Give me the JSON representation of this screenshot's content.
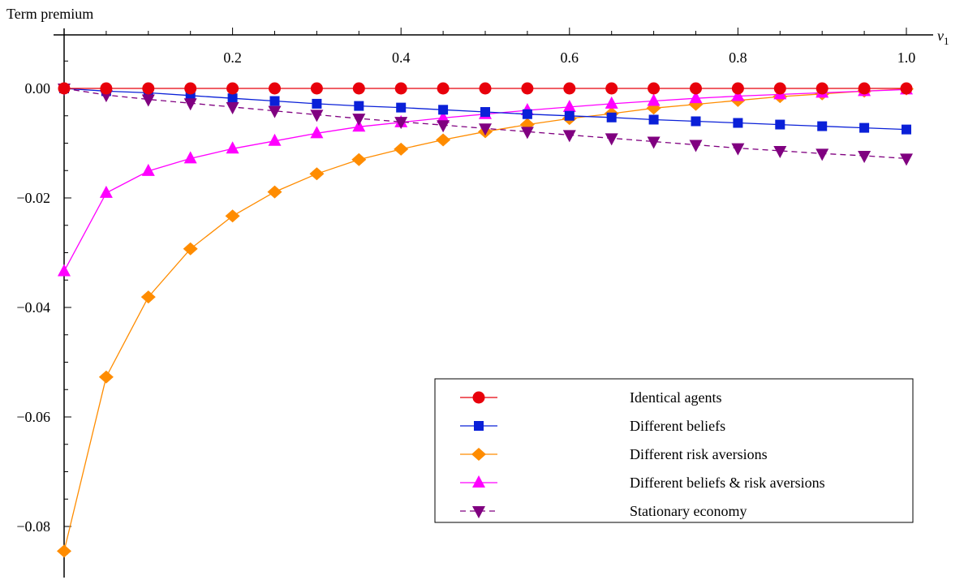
{
  "chart_data": {
    "type": "line",
    "ylabel": "Term premium",
    "xlabel": "ν",
    "xlabel_subscript": "1",
    "xlim": [
      0,
      1
    ],
    "ylim": [
      -0.09,
      0.01
    ],
    "x_ticks": [
      {
        "value": 0.2,
        "label": "0.2"
      },
      {
        "value": 0.4,
        "label": "0.4"
      },
      {
        "value": 0.6,
        "label": "0.6"
      },
      {
        "value": 0.8,
        "label": "0.8"
      },
      {
        "value": 1.0,
        "label": "1.0"
      }
    ],
    "y_ticks": [
      {
        "value": 0.0,
        "label": "0.00"
      },
      {
        "value": -0.02,
        "label": "−0.02"
      },
      {
        "value": -0.04,
        "label": "−0.04"
      },
      {
        "value": -0.06,
        "label": "−0.06"
      },
      {
        "value": -0.08,
        "label": "−0.08"
      }
    ],
    "x": [
      0,
      0.05,
      0.1,
      0.15,
      0.2,
      0.25,
      0.3,
      0.35,
      0.4,
      0.45,
      0.5,
      0.55,
      0.6,
      0.65,
      0.7,
      0.75,
      0.8,
      0.85,
      0.9,
      0.95,
      1.0
    ],
    "legend_position": "bottom-right",
    "series": [
      {
        "name": "Identical agents",
        "color": "#e8000b",
        "marker": "circle",
        "dash": false,
        "values": [
          0,
          0,
          0,
          0,
          0,
          0,
          0,
          0,
          0,
          0,
          0,
          0,
          0,
          0,
          0,
          0,
          0,
          0,
          0,
          0,
          0
        ]
      },
      {
        "name": "Different beliefs",
        "color": "#0a20d8",
        "marker": "square",
        "dash": false,
        "values": [
          0,
          -0.0005,
          -0.0008,
          -0.0013,
          -0.0018,
          -0.0023,
          -0.0028,
          -0.0032,
          -0.0035,
          -0.0039,
          -0.0043,
          -0.0047,
          -0.005,
          -0.0053,
          -0.0057,
          -0.006,
          -0.0063,
          -0.0066,
          -0.0069,
          -0.0072,
          -0.0075
        ]
      },
      {
        "name": "Different risk aversions",
        "color": "#ff8c00",
        "marker": "diamond",
        "dash": false,
        "values": [
          -0.0845,
          -0.0527,
          -0.0381,
          -0.0293,
          -0.0233,
          -0.0189,
          -0.0156,
          -0.013,
          -0.0111,
          -0.0094,
          -0.0079,
          -0.0066,
          -0.0055,
          -0.0046,
          -0.0036,
          -0.0029,
          -0.0022,
          -0.0015,
          -0.001,
          -0.0005,
          -0.0001
        ]
      },
      {
        "name": "Different beliefs & risk aversions",
        "color": "#ff00ff",
        "marker": "triangle-up",
        "dash": false,
        "values": [
          -0.0334,
          -0.0191,
          -0.0151,
          -0.0128,
          -0.011,
          -0.0096,
          -0.0082,
          -0.007,
          -0.0062,
          -0.0054,
          -0.0047,
          -0.004,
          -0.0034,
          -0.0028,
          -0.0023,
          -0.0018,
          -0.0014,
          -0.0011,
          -0.0008,
          -0.0005,
          -0.0002
        ]
      },
      {
        "name": "Stationary economy",
        "color": "#800080",
        "marker": "triangle-down",
        "dash": true,
        "values": [
          0,
          -0.0012,
          -0.002,
          -0.0027,
          -0.0034,
          -0.0041,
          -0.0048,
          -0.0055,
          -0.0061,
          -0.0067,
          -0.0073,
          -0.0079,
          -0.0085,
          -0.0091,
          -0.0097,
          -0.0103,
          -0.0109,
          -0.0114,
          -0.0119,
          -0.0123,
          -0.0128
        ]
      }
    ]
  }
}
